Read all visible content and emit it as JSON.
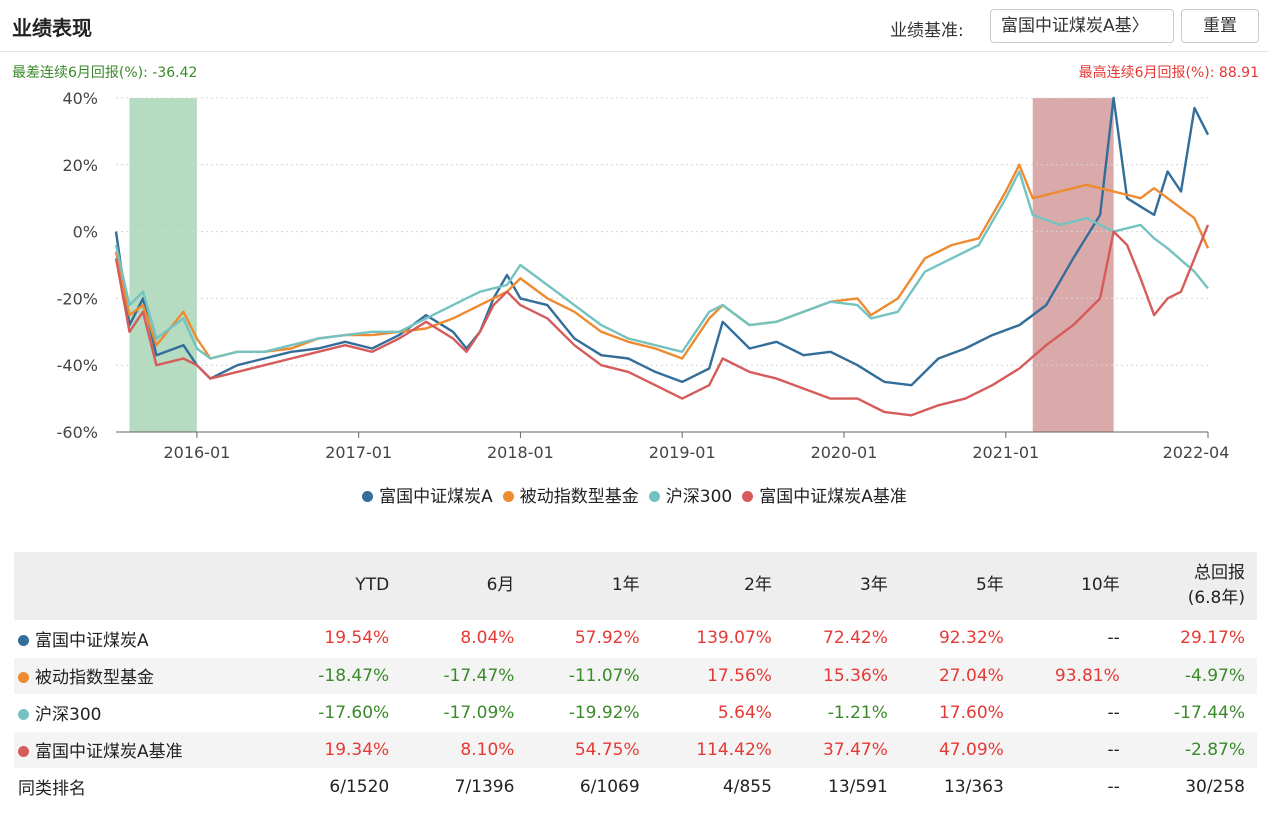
{
  "header": {
    "title": "业绩表现",
    "benchmark_label": "业绩基准:",
    "benchmark_value": "富国中证煤炭A基〉",
    "reset_label": "重置"
  },
  "stats": {
    "worst": "最差连续6月回报(%): -36.42",
    "best": "最高连续6月回报(%): 88.91"
  },
  "colors": {
    "fund": "#336d9a",
    "passive": "#ee8a30",
    "hs300": "#74c3c1",
    "benchmark": "#d65b5b",
    "worst_band": "#a8d5b5",
    "best_band": "#d49a9a"
  },
  "chart_data": {
    "type": "line",
    "x_range": [
      "2015-07",
      "2022-04"
    ],
    "x_ticks": [
      "2016-01",
      "2017-01",
      "2018-01",
      "2019-01",
      "2020-01",
      "2021-01",
      "2022-04"
    ],
    "ylim": [
      -60,
      40
    ],
    "y_ticks": [
      "40%",
      "20%",
      "0%",
      "-20%",
      "-40%",
      "-60%"
    ],
    "grid": true,
    "legend_position": "bottom",
    "highlight_worst": {
      "start": "2015-08",
      "end": "2016-01"
    },
    "highlight_best": {
      "start": "2021-03",
      "end": "2021-09"
    },
    "series": [
      {
        "name": "富国中证煤炭A",
        "color_key": "fund",
        "points": [
          [
            "2015-07",
            0
          ],
          [
            "2015-08",
            -28
          ],
          [
            "2015-09",
            -20
          ],
          [
            "2015-10",
            -37
          ],
          [
            "2015-12",
            -34
          ],
          [
            "2016-01",
            -40
          ],
          [
            "2016-02",
            -44
          ],
          [
            "2016-04",
            -40
          ],
          [
            "2016-06",
            -38
          ],
          [
            "2016-08",
            -36
          ],
          [
            "2016-10",
            -35
          ],
          [
            "2016-12",
            -33
          ],
          [
            "2017-02",
            -35
          ],
          [
            "2017-04",
            -31
          ],
          [
            "2017-06",
            -25
          ],
          [
            "2017-08",
            -30
          ],
          [
            "2017-09",
            -35
          ],
          [
            "2017-10",
            -30
          ],
          [
            "2017-11",
            -20
          ],
          [
            "2017-12",
            -13
          ],
          [
            "2018-01",
            -20
          ],
          [
            "2018-03",
            -22
          ],
          [
            "2018-05",
            -32
          ],
          [
            "2018-07",
            -37
          ],
          [
            "2018-09",
            -38
          ],
          [
            "2018-11",
            -42
          ],
          [
            "2019-01",
            -45
          ],
          [
            "2019-03",
            -41
          ],
          [
            "2019-04",
            -27
          ],
          [
            "2019-06",
            -35
          ],
          [
            "2019-08",
            -33
          ],
          [
            "2019-10",
            -37
          ],
          [
            "2019-12",
            -36
          ],
          [
            "2020-02",
            -40
          ],
          [
            "2020-04",
            -45
          ],
          [
            "2020-06",
            -46
          ],
          [
            "2020-08",
            -38
          ],
          [
            "2020-10",
            -35
          ],
          [
            "2020-12",
            -31
          ],
          [
            "2021-02",
            -28
          ],
          [
            "2021-04",
            -22
          ],
          [
            "2021-06",
            -8
          ],
          [
            "2021-08",
            5
          ],
          [
            "2021-09",
            40
          ],
          [
            "2021-10",
            10
          ],
          [
            "2021-12",
            5
          ],
          [
            "2022-01",
            18
          ],
          [
            "2022-02",
            12
          ],
          [
            "2022-03",
            37
          ],
          [
            "2022-04",
            29
          ]
        ]
      },
      {
        "name": "被动指数型基金",
        "color_key": "passive",
        "points": [
          [
            "2015-07",
            -6
          ],
          [
            "2015-08",
            -25
          ],
          [
            "2015-09",
            -22
          ],
          [
            "2015-10",
            -34
          ],
          [
            "2015-12",
            -24
          ],
          [
            "2016-01",
            -32
          ],
          [
            "2016-02",
            -38
          ],
          [
            "2016-04",
            -36
          ],
          [
            "2016-06",
            -36
          ],
          [
            "2016-08",
            -35
          ],
          [
            "2016-10",
            -32
          ],
          [
            "2016-12",
            -31
          ],
          [
            "2017-02",
            -31
          ],
          [
            "2017-04",
            -30
          ],
          [
            "2017-06",
            -29
          ],
          [
            "2017-08",
            -26
          ],
          [
            "2017-10",
            -22
          ],
          [
            "2017-12",
            -18
          ],
          [
            "2018-01",
            -14
          ],
          [
            "2018-03",
            -20
          ],
          [
            "2018-05",
            -24
          ],
          [
            "2018-07",
            -30
          ],
          [
            "2018-09",
            -33
          ],
          [
            "2018-11",
            -35
          ],
          [
            "2019-01",
            -38
          ],
          [
            "2019-03",
            -26
          ],
          [
            "2019-04",
            -22
          ],
          [
            "2019-06",
            -28
          ],
          [
            "2019-08",
            -27
          ],
          [
            "2019-10",
            -24
          ],
          [
            "2019-12",
            -21
          ],
          [
            "2020-02",
            -20
          ],
          [
            "2020-03",
            -25
          ],
          [
            "2020-05",
            -20
          ],
          [
            "2020-07",
            -8
          ],
          [
            "2020-09",
            -4
          ],
          [
            "2020-11",
            -2
          ],
          [
            "2021-01",
            12
          ],
          [
            "2021-02",
            20
          ],
          [
            "2021-03",
            10
          ],
          [
            "2021-05",
            12
          ],
          [
            "2021-07",
            14
          ],
          [
            "2021-09",
            12
          ],
          [
            "2021-11",
            10
          ],
          [
            "2021-12",
            13
          ],
          [
            "2022-01",
            10
          ],
          [
            "2022-03",
            4
          ],
          [
            "2022-04",
            -5
          ]
        ]
      },
      {
        "name": "沪深300",
        "color_key": "hs300",
        "points": [
          [
            "2015-07",
            -4
          ],
          [
            "2015-08",
            -22
          ],
          [
            "2015-09",
            -18
          ],
          [
            "2015-10",
            -32
          ],
          [
            "2015-12",
            -26
          ],
          [
            "2016-01",
            -35
          ],
          [
            "2016-02",
            -38
          ],
          [
            "2016-04",
            -36
          ],
          [
            "2016-06",
            -36
          ],
          [
            "2016-08",
            -34
          ],
          [
            "2016-10",
            -32
          ],
          [
            "2016-12",
            -31
          ],
          [
            "2017-02",
            -30
          ],
          [
            "2017-04",
            -30
          ],
          [
            "2017-06",
            -26
          ],
          [
            "2017-08",
            -22
          ],
          [
            "2017-10",
            -18
          ],
          [
            "2017-12",
            -16
          ],
          [
            "2018-01",
            -10
          ],
          [
            "2018-03",
            -16
          ],
          [
            "2018-05",
            -22
          ],
          [
            "2018-07",
            -28
          ],
          [
            "2018-09",
            -32
          ],
          [
            "2018-11",
            -34
          ],
          [
            "2019-01",
            -36
          ],
          [
            "2019-03",
            -24
          ],
          [
            "2019-04",
            -22
          ],
          [
            "2019-06",
            -28
          ],
          [
            "2019-08",
            -27
          ],
          [
            "2019-10",
            -24
          ],
          [
            "2019-12",
            -21
          ],
          [
            "2020-02",
            -22
          ],
          [
            "2020-03",
            -26
          ],
          [
            "2020-05",
            -24
          ],
          [
            "2020-07",
            -12
          ],
          [
            "2020-09",
            -8
          ],
          [
            "2020-11",
            -4
          ],
          [
            "2021-01",
            10
          ],
          [
            "2021-02",
            18
          ],
          [
            "2021-03",
            5
          ],
          [
            "2021-05",
            2
          ],
          [
            "2021-07",
            4
          ],
          [
            "2021-09",
            0
          ],
          [
            "2021-11",
            2
          ],
          [
            "2021-12",
            -2
          ],
          [
            "2022-01",
            -5
          ],
          [
            "2022-03",
            -12
          ],
          [
            "2022-04",
            -17
          ]
        ]
      },
      {
        "name": "富国中证煤炭A基准",
        "color_key": "benchmark",
        "points": [
          [
            "2015-07",
            -8
          ],
          [
            "2015-08",
            -30
          ],
          [
            "2015-09",
            -24
          ],
          [
            "2015-10",
            -40
          ],
          [
            "2015-12",
            -38
          ],
          [
            "2016-01",
            -40
          ],
          [
            "2016-02",
            -44
          ],
          [
            "2016-04",
            -42
          ],
          [
            "2016-06",
            -40
          ],
          [
            "2016-08",
            -38
          ],
          [
            "2016-10",
            -36
          ],
          [
            "2016-12",
            -34
          ],
          [
            "2017-02",
            -36
          ],
          [
            "2017-04",
            -32
          ],
          [
            "2017-06",
            -27
          ],
          [
            "2017-08",
            -32
          ],
          [
            "2017-09",
            -36
          ],
          [
            "2017-10",
            -30
          ],
          [
            "2017-11",
            -22
          ],
          [
            "2017-12",
            -18
          ],
          [
            "2018-01",
            -22
          ],
          [
            "2018-03",
            -26
          ],
          [
            "2018-05",
            -34
          ],
          [
            "2018-07",
            -40
          ],
          [
            "2018-09",
            -42
          ],
          [
            "2018-11",
            -46
          ],
          [
            "2019-01",
            -50
          ],
          [
            "2019-03",
            -46
          ],
          [
            "2019-04",
            -38
          ],
          [
            "2019-06",
            -42
          ],
          [
            "2019-08",
            -44
          ],
          [
            "2019-10",
            -47
          ],
          [
            "2019-12",
            -50
          ],
          [
            "2020-02",
            -50
          ],
          [
            "2020-04",
            -54
          ],
          [
            "2020-06",
            -55
          ],
          [
            "2020-08",
            -52
          ],
          [
            "2020-10",
            -50
          ],
          [
            "2020-12",
            -46
          ],
          [
            "2021-02",
            -41
          ],
          [
            "2021-04",
            -34
          ],
          [
            "2021-06",
            -28
          ],
          [
            "2021-08",
            -20
          ],
          [
            "2021-09",
            0
          ],
          [
            "2021-10",
            -4
          ],
          [
            "2021-11",
            -14
          ],
          [
            "2021-12",
            -25
          ],
          [
            "2022-01",
            -20
          ],
          [
            "2022-02",
            -18
          ],
          [
            "2022-03",
            -8
          ],
          [
            "2022-04",
            2
          ]
        ]
      }
    ]
  },
  "table": {
    "headers": [
      "",
      "YTD",
      "6月",
      "1年",
      "2年",
      "3年",
      "5年",
      "10年",
      "总回报",
      "(6.8年)"
    ],
    "rows": [
      {
        "name": "富国中证煤炭A",
        "color_key": "fund",
        "values": [
          "19.54%",
          "8.04%",
          "57.92%",
          "139.07%",
          "72.42%",
          "92.32%",
          "--",
          "29.17%"
        ]
      },
      {
        "name": "被动指数型基金",
        "color_key": "passive",
        "values": [
          "-18.47%",
          "-17.47%",
          "-11.07%",
          "17.56%",
          "15.36%",
          "27.04%",
          "93.81%",
          "-4.97%"
        ]
      },
      {
        "name": "沪深300",
        "color_key": "hs300",
        "values": [
          "-17.60%",
          "-17.09%",
          "-19.92%",
          "5.64%",
          "-1.21%",
          "17.60%",
          "--",
          "-17.44%"
        ]
      },
      {
        "name": "富国中证煤炭A基准",
        "color_key": "benchmark",
        "values": [
          "19.34%",
          "8.10%",
          "54.75%",
          "114.42%",
          "37.47%",
          "47.09%",
          "--",
          "-2.87%"
        ]
      }
    ],
    "rank_row": {
      "name": "同类排名",
      "values": [
        "6/1520",
        "7/1396",
        "6/1069",
        "4/855",
        "13/591",
        "13/363",
        "--",
        "30/258"
      ]
    }
  }
}
